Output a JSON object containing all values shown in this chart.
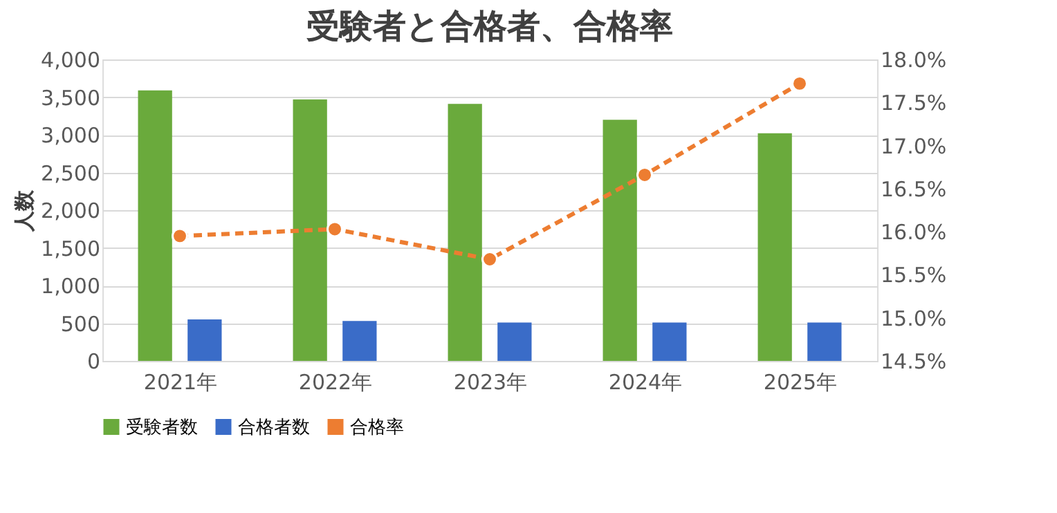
{
  "chart_data": {
    "type": "bar",
    "title": "受験者と合格者、合格率",
    "ylabel": "人数",
    "categories": [
      "2021年",
      "2022年",
      "2023年",
      "2024年",
      "2025年"
    ],
    "series": [
      {
        "name": "受験者数",
        "color": "#6aaa3c",
        "values": [
          3590,
          3470,
          3410,
          3200,
          3020
        ]
      },
      {
        "name": "合格者数",
        "color": "#3a6cc8",
        "values": [
          550,
          530,
          510,
          510,
          510
        ]
      },
      {
        "name": "合格率",
        "type": "line",
        "axis": "y2",
        "color": "#ed7d31",
        "marker": "circle",
        "line_style": "dashed",
        "values": [
          15.95,
          16.03,
          15.68,
          16.66,
          17.72
        ]
      }
    ],
    "ylim": [
      0,
      4000
    ],
    "yticks": [
      {
        "value": 0,
        "label": "0"
      },
      {
        "value": 500,
        "label": "500"
      },
      {
        "value": 1000,
        "label": "1,000"
      },
      {
        "value": 1500,
        "label": "1,500"
      },
      {
        "value": 2000,
        "label": "2,000"
      },
      {
        "value": 2500,
        "label": "2,500"
      },
      {
        "value": 3000,
        "label": "3,000"
      },
      {
        "value": 3500,
        "label": "3,500"
      },
      {
        "value": 4000,
        "label": "4,000"
      }
    ],
    "y2lim": [
      14.5,
      18.0
    ],
    "y2ticks": [
      {
        "value": 14.5,
        "label": "14.5%"
      },
      {
        "value": 15.0,
        "label": "15.0%"
      },
      {
        "value": 15.5,
        "label": "15.5%"
      },
      {
        "value": 16.0,
        "label": "16.0%"
      },
      {
        "value": 16.5,
        "label": "16.5%"
      },
      {
        "value": 17.0,
        "label": "17.0%"
      },
      {
        "value": 17.5,
        "label": "17.5%"
      },
      {
        "value": 18.0,
        "label": "18.0%"
      }
    ],
    "grid": "y",
    "legend": "bottom"
  }
}
